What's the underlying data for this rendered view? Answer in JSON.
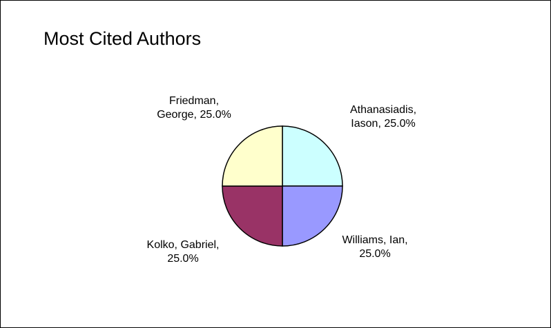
{
  "chart_data": {
    "type": "pie",
    "title": "Most Cited Authors",
    "slices": [
      {
        "label": "Athanasiadis, Iason",
        "value": 25.0,
        "label_lines": [
          "Athanasiadis,",
          "Iason, 25.0%"
        ],
        "color": "#CCFFFF"
      },
      {
        "label": "Williams, Ian",
        "value": 25.0,
        "label_lines": [
          "Williams, Ian,",
          "25.0%"
        ],
        "color": "#9999FF"
      },
      {
        "label": "Kolko, Gabriel",
        "value": 25.0,
        "label_lines": [
          "Kolko, Gabriel,",
          "25.0%"
        ],
        "color": "#993366"
      },
      {
        "label": "Friedman, George",
        "value": 25.0,
        "label_lines": [
          "Friedman,",
          "George, 25.0%"
        ],
        "color": "#FFFFCC"
      }
    ],
    "start_angle_deg": 0,
    "direction": "clockwise",
    "legend": "none"
  }
}
